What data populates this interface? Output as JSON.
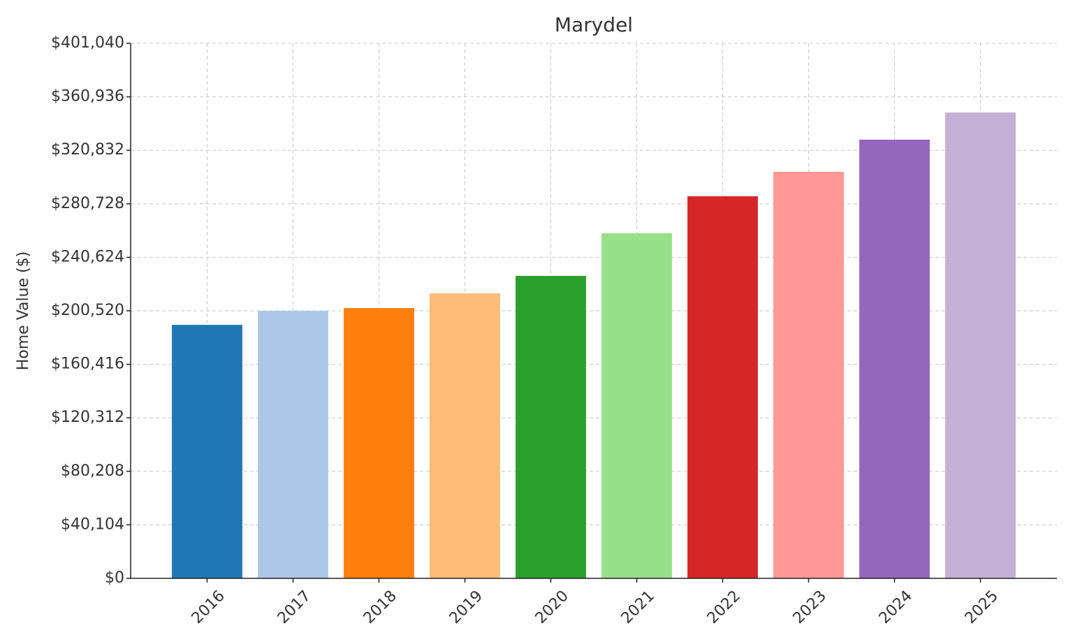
{
  "chart_data": {
    "type": "bar",
    "title": "Marydel",
    "ylabel": "Home Value ($)",
    "categories": [
      "2016",
      "2017",
      "2018",
      "2019",
      "2020",
      "2021",
      "2022",
      "2023",
      "2024",
      "2025"
    ],
    "values": [
      190000,
      200500,
      202600,
      213600,
      226700,
      258700,
      286400,
      304700,
      328800,
      349200
    ],
    "colors": [
      "#1f77b4",
      "#aec7e8",
      "#ff7f0e",
      "#ffbb78",
      "#2ca02c",
      "#98df8a",
      "#d62728",
      "#ff9896",
      "#9467bd",
      "#c5b0d5"
    ],
    "ylim": [
      0,
      401040
    ],
    "yticks": [
      {
        "value": 0,
        "label": "$0"
      },
      {
        "value": 40104,
        "label": "$40,104"
      },
      {
        "value": 80208,
        "label": "$80,208"
      },
      {
        "value": 120312,
        "label": "$120,312"
      },
      {
        "value": 160416,
        "label": "$160,416"
      },
      {
        "value": 200520,
        "label": "$200,520"
      },
      {
        "value": 240624,
        "label": "$240,624"
      },
      {
        "value": 280728,
        "label": "$280,728"
      },
      {
        "value": 320832,
        "label": "$320,832"
      },
      {
        "value": 360936,
        "label": "$360,936"
      },
      {
        "value": 401040,
        "label": "$401,040"
      }
    ],
    "grid": true
  }
}
